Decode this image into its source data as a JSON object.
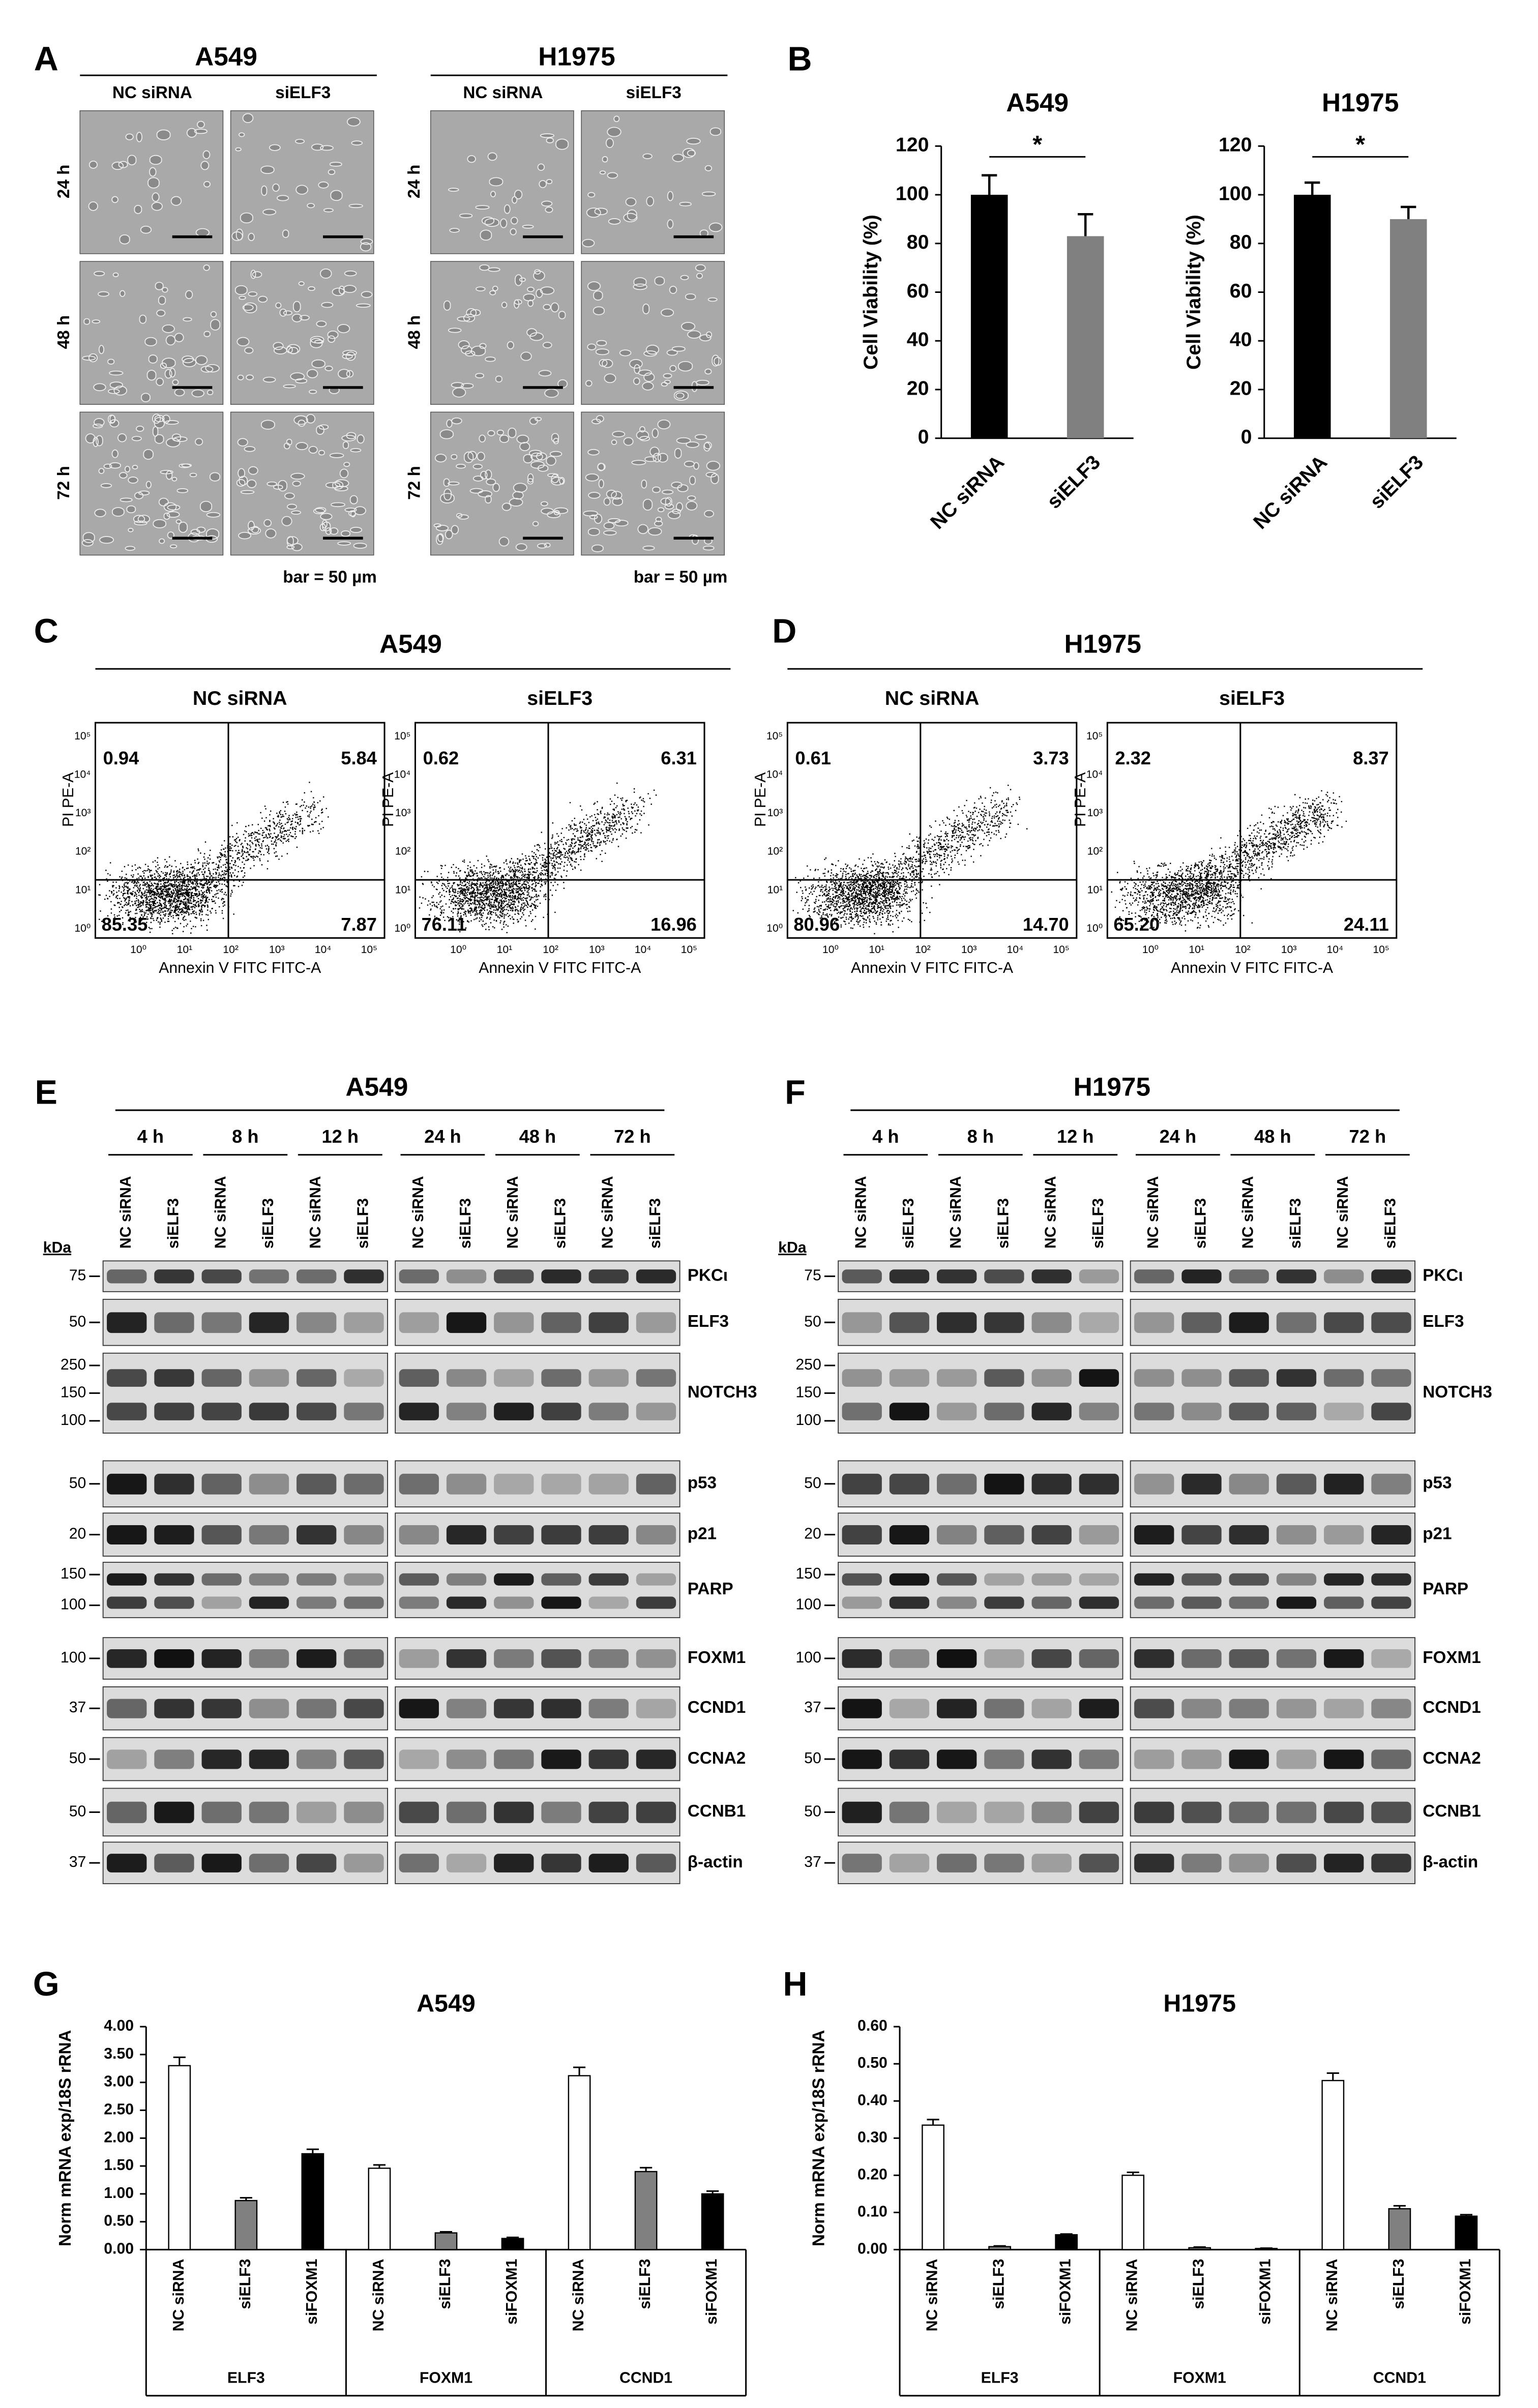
{
  "panel_labels": [
    "A",
    "B",
    "C",
    "D",
    "E",
    "F",
    "G",
    "H"
  ],
  "micrographs": [
    {
      "cell_line": "A549",
      "columns": [
        "NC siRNA",
        "siELF3"
      ],
      "rows": [
        "24 h",
        "48 h",
        "72 h"
      ],
      "scale_note": "bar = 50 µm"
    },
    {
      "cell_line": "H1975",
      "columns": [
        "NC siRNA",
        "siELF3"
      ],
      "rows": [
        "24 h",
        "48 h",
        "72 h"
      ],
      "scale_note": "bar = 50 µm"
    }
  ],
  "chart_data": [
    {
      "type": "bar",
      "title": "A549",
      "y_label": "Cell Viability (%)",
      "categories": [
        "NC siRNA",
        "siELF3"
      ],
      "values": [
        100,
        83
      ],
      "errors": [
        8,
        9
      ],
      "colors": [
        "#000000",
        "#808080"
      ],
      "ylim": [
        0,
        120
      ],
      "yticks": [
        0,
        20,
        40,
        60,
        80,
        100,
        120
      ],
      "annotation": "*"
    },
    {
      "type": "bar",
      "title": "H1975",
      "y_label": "Cell Viability (%)",
      "categories": [
        "NC siRNA",
        "siELF3"
      ],
      "values": [
        100,
        90
      ],
      "errors": [
        5,
        5
      ],
      "colors": [
        "#000000",
        "#808080"
      ],
      "ylim": [
        0,
        120
      ],
      "yticks": [
        0,
        20,
        40,
        60,
        80,
        100,
        120
      ],
      "annotation": "*"
    },
    {
      "type": "grouped_bar",
      "title": "A549",
      "y_label": "Norm mRNA exp/18S rRNA",
      "categories": [
        "ELF3",
        "FOXM1",
        "CCND1"
      ],
      "series": [
        {
          "name": "NC siRNA",
          "color": "#ffffff",
          "values": [
            3.3,
            1.46,
            3.12
          ],
          "errors": [
            0.15,
            0.06,
            0.15
          ]
        },
        {
          "name": "siELF3",
          "color": "#808080",
          "values": [
            0.88,
            0.3,
            1.4
          ],
          "errors": [
            0.05,
            0.02,
            0.07
          ]
        },
        {
          "name": "siFOXM1",
          "color": "#000000",
          "values": [
            1.72,
            0.2,
            1.0
          ],
          "errors": [
            0.08,
            0.02,
            0.05
          ]
        }
      ],
      "ylim": [
        0,
        4
      ],
      "yticks": [
        {
          "value": 0,
          "label": "0.00"
        },
        {
          "value": 0.5,
          "label": "0.50"
        },
        {
          "value": 1,
          "label": "1.00"
        },
        {
          "value": 1.5,
          "label": "1.50"
        },
        {
          "value": 2,
          "label": "2.00"
        },
        {
          "value": 2.5,
          "label": "2.50"
        },
        {
          "value": 3,
          "label": "3.00"
        },
        {
          "value": 3.5,
          "label": "3.50"
        },
        {
          "value": 4,
          "label": "4.00"
        }
      ]
    },
    {
      "type": "grouped_bar",
      "title": "H1975",
      "y_label": "Norm mRNA exp/18S rRNA",
      "categories": [
        "ELF3",
        "FOXM1",
        "CCND1"
      ],
      "series": [
        {
          "name": "NC siRNA",
          "color": "#ffffff",
          "values": [
            0.335,
            0.2,
            0.455
          ],
          "errors": [
            0.015,
            0.008,
            0.02
          ]
        },
        {
          "name": "siELF3",
          "color": "#808080",
          "values": [
            0.008,
            0.005,
            0.11
          ],
          "errors": [
            0.002,
            0.002,
            0.008
          ]
        },
        {
          "name": "siFOXM1",
          "color": "#000000",
          "values": [
            0.04,
            0.003,
            0.09
          ],
          "errors": [
            0.002,
            0.001,
            0.004
          ]
        }
      ],
      "ylim": [
        0,
        0.6
      ],
      "yticks": [
        {
          "value": 0,
          "label": "0.00"
        },
        {
          "value": 0.1,
          "label": "0.10"
        },
        {
          "value": 0.2,
          "label": "0.20"
        },
        {
          "value": 0.3,
          "label": "0.30"
        },
        {
          "value": 0.4,
          "label": "0.40"
        },
        {
          "value": 0.5,
          "label": "0.50"
        },
        {
          "value": 0.6,
          "label": "0.60"
        }
      ]
    }
  ],
  "flow_cytometry": [
    {
      "cell_line": "A549",
      "x_label": "Annexin V FITC FITC-A",
      "y_label": "PI PE-A",
      "axis_ticks": [
        "10⁰",
        "10¹",
        "10²",
        "10³",
        "10⁴",
        "10⁵"
      ],
      "plots": [
        {
          "condition": "NC siRNA",
          "upper_left": "0.94",
          "upper_right": "5.84",
          "lower_left": "85.35",
          "lower_right": "7.87"
        },
        {
          "condition": "siELF3",
          "upper_left": "0.62",
          "upper_right": "6.31",
          "lower_left": "76.11",
          "lower_right": "16.96"
        }
      ]
    },
    {
      "cell_line": "H1975",
      "x_label": "Annexin V FITC FITC-A",
      "y_label": "PI PE-A",
      "axis_ticks": [
        "10⁰",
        "10¹",
        "10²",
        "10³",
        "10⁴",
        "10⁵"
      ],
      "plots": [
        {
          "condition": "NC siRNA",
          "upper_left": "0.61",
          "upper_right": "3.73",
          "lower_left": "80.96",
          "lower_right": "14.70"
        },
        {
          "condition": "siELF3",
          "upper_left": "2.32",
          "upper_right": "8.37",
          "lower_left": "65.20",
          "lower_right": "24.11"
        }
      ]
    }
  ],
  "western_blots": [
    {
      "cell_line": "A549",
      "time_points": [
        "4 h",
        "8 h",
        "12 h",
        "24 h",
        "48 h",
        "72 h"
      ],
      "lanes": [
        "NC siRNA",
        "siELF3"
      ],
      "marker_unit": "kDa",
      "rows": [
        {
          "protein": "PKCι",
          "markers": [
            75
          ]
        },
        {
          "protein": "ELF3",
          "markers": [
            50
          ]
        },
        {
          "protein": "NOTCH3",
          "markers": [
            250,
            150,
            100
          ]
        },
        {
          "protein": "p53",
          "markers": [
            50
          ]
        },
        {
          "protein": "p21",
          "markers": [
            20
          ]
        },
        {
          "protein": "PARP",
          "markers": [
            150,
            100
          ]
        },
        {
          "protein": "FOXM1",
          "markers": [
            100
          ]
        },
        {
          "protein": "CCND1",
          "markers": [
            37
          ]
        },
        {
          "protein": "CCNA2",
          "markers": [
            50
          ]
        },
        {
          "protein": "CCNB1",
          "markers": [
            50
          ]
        },
        {
          "protein": "β-actin",
          "markers": [
            37
          ]
        }
      ]
    },
    {
      "cell_line": "H1975",
      "time_points": [
        "4 h",
        "8 h",
        "12 h",
        "24 h",
        "48 h",
        "72 h"
      ],
      "lanes": [
        "NC siRNA",
        "siELF3"
      ],
      "marker_unit": "kDa",
      "rows": [
        {
          "protein": "PKCι",
          "markers": [
            75
          ]
        },
        {
          "protein": "ELF3",
          "markers": [
            50
          ]
        },
        {
          "protein": "NOTCH3",
          "markers": [
            250,
            150,
            100
          ]
        },
        {
          "protein": "p53",
          "markers": [
            50
          ]
        },
        {
          "protein": "p21",
          "markers": [
            20
          ]
        },
        {
          "protein": "PARP",
          "markers": [
            150,
            100
          ]
        },
        {
          "protein": "FOXM1",
          "markers": [
            100
          ]
        },
        {
          "protein": "CCND1",
          "markers": [
            37
          ]
        },
        {
          "protein": "CCNA2",
          "markers": [
            50
          ]
        },
        {
          "protein": "CCNB1",
          "markers": [
            50
          ]
        },
        {
          "protein": "β-actin",
          "markers": [
            37
          ]
        }
      ]
    }
  ]
}
